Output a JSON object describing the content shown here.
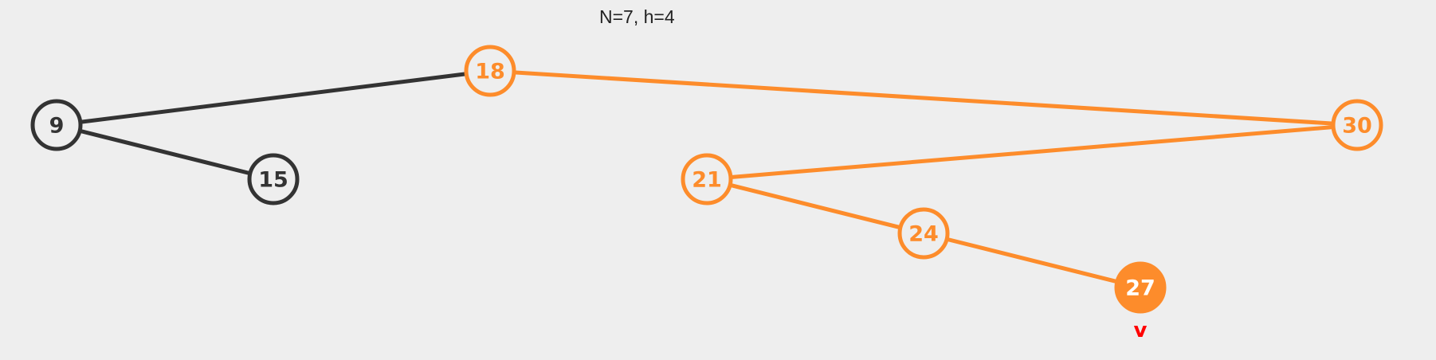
{
  "header": {
    "text": "N=7, h=4"
  },
  "colors": {
    "default": "#333333",
    "highlight": "#fd8c2b",
    "background": "#eeeeee",
    "pointer": "#ff0000"
  },
  "tree": {
    "nodes": [
      {
        "id": "n9",
        "key": "9",
        "state": "default"
      },
      {
        "id": "n15",
        "key": "15",
        "state": "default"
      },
      {
        "id": "n18",
        "key": "18",
        "state": "highlight"
      },
      {
        "id": "n30",
        "key": "30",
        "state": "highlight"
      },
      {
        "id": "n21",
        "key": "21",
        "state": "highlight"
      },
      {
        "id": "n24",
        "key": "24",
        "state": "highlight"
      },
      {
        "id": "n27",
        "key": "27",
        "state": "selected"
      }
    ],
    "edges": [
      {
        "from": "n18",
        "to": "n9",
        "state": "default"
      },
      {
        "from": "n9",
        "to": "n15",
        "state": "default"
      },
      {
        "from": "n18",
        "to": "n30",
        "state": "highlight"
      },
      {
        "from": "n30",
        "to": "n21",
        "state": "highlight"
      },
      {
        "from": "n21",
        "to": "n24",
        "state": "highlight"
      },
      {
        "from": "n24",
        "to": "n27",
        "state": "highlight"
      }
    ],
    "pointer": {
      "node": "n27",
      "label": "v"
    }
  }
}
